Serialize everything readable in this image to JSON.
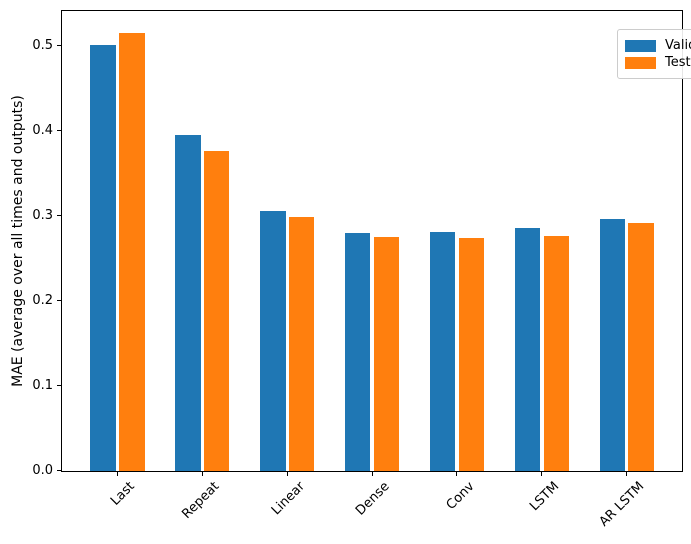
{
  "chart_data": {
    "type": "bar",
    "title": "",
    "xlabel": "",
    "ylabel": "MAE (average over all times and outputs)",
    "categories": [
      "Last",
      "Repeat",
      "Linear",
      "Dense",
      "Conv",
      "LSTM",
      "AR LSTM"
    ],
    "series": [
      {
        "name": "Validation",
        "color": "#1f77b4",
        "values": [
          0.501,
          0.396,
          0.306,
          0.28,
          0.281,
          0.286,
          0.297
        ]
      },
      {
        "name": "Test",
        "color": "#ff7f0e",
        "values": [
          0.516,
          0.377,
          0.299,
          0.276,
          0.274,
          0.277,
          0.292
        ]
      }
    ],
    "ytick_labels": [
      "0.0",
      "0.1",
      "0.2",
      "0.3",
      "0.4",
      "0.5"
    ],
    "ytick_values": [
      0.0,
      0.1,
      0.2,
      0.3,
      0.4,
      0.5
    ],
    "ylim": [
      0,
      0.5415
    ],
    "xlim": [
      -0.652,
      6.652
    ],
    "bar_width_units": 0.3,
    "bar_offset_units": 0.17,
    "xtick_rotation_deg": 45,
    "grid": false,
    "legend_position": "upper right"
  }
}
